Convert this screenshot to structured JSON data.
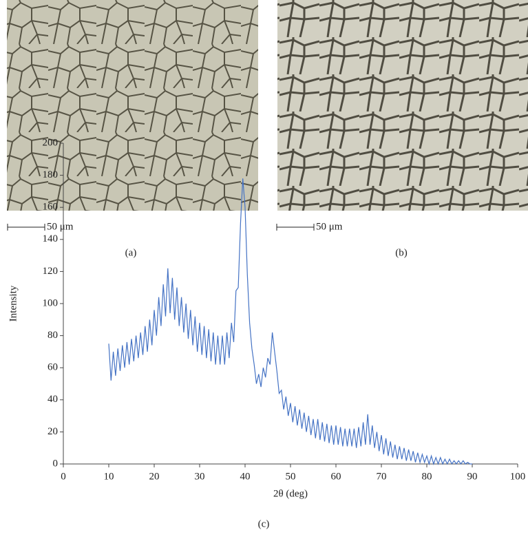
{
  "panels": [
    {
      "label": "(a)",
      "scale_label": "50 μm"
    },
    {
      "label": "(b)",
      "scale_label": "50 μm"
    }
  ],
  "chart_data": {
    "type": "line",
    "panel_label": "(c)",
    "x_label": "2θ (deg)",
    "y_label": "Intensity",
    "color": "#4472c4",
    "xlim": [
      0,
      100
    ],
    "xticks": [
      0,
      10,
      20,
      30,
      40,
      50,
      60,
      70,
      80,
      90,
      100
    ],
    "ylim": [
      0,
      200
    ],
    "yticks": [
      0,
      20,
      40,
      60,
      80,
      100,
      120,
      140,
      160,
      180,
      200
    ],
    "grid": false,
    "x": [
      10,
      10.5,
      11,
      11.5,
      12,
      12.5,
      13,
      13.5,
      14,
      14.5,
      15,
      15.5,
      16,
      16.5,
      17,
      17.5,
      18,
      18.5,
      19,
      19.5,
      20,
      20.5,
      21,
      21.5,
      22,
      22.5,
      23,
      23.5,
      24,
      24.5,
      25,
      25.5,
      26,
      26.5,
      27,
      27.5,
      28,
      28.5,
      29,
      29.5,
      30,
      30.5,
      31,
      31.5,
      32,
      32.5,
      33,
      33.5,
      34,
      34.5,
      35,
      35.5,
      36,
      36.5,
      37,
      37.5,
      38,
      38.5,
      39,
      39.5,
      40,
      40.5,
      41,
      41.5,
      42,
      42.5,
      43,
      43.5,
      44,
      44.5,
      45,
      45.5,
      46,
      46.5,
      47,
      47.5,
      48,
      48.5,
      49,
      49.5,
      50,
      50.5,
      51,
      51.5,
      52,
      52.5,
      53,
      53.5,
      54,
      54.5,
      55,
      55.5,
      56,
      56.5,
      57,
      57.5,
      58,
      58.5,
      59,
      59.5,
      60,
      60.5,
      61,
      61.5,
      62,
      62.5,
      63,
      63.5,
      64,
      64.5,
      65,
      65.5,
      66,
      66.5,
      67,
      67.5,
      68,
      68.5,
      69,
      69.5,
      70,
      70.5,
      71,
      71.5,
      72,
      72.5,
      73,
      73.5,
      74,
      74.5,
      75,
      75.5,
      76,
      76.5,
      77,
      77.5,
      78,
      78.5,
      79,
      79.5,
      80,
      80.5,
      81,
      81.5,
      82,
      82.5,
      83,
      83.5,
      84,
      84.5,
      85,
      85.5,
      86,
      86.5,
      87,
      87.5,
      88,
      88.5,
      89,
      89.5,
      90
    ],
    "values": [
      75,
      52,
      70,
      55,
      72,
      58,
      74,
      60,
      76,
      62,
      78,
      64,
      80,
      66,
      82,
      68,
      86,
      70,
      90,
      74,
      96,
      80,
      104,
      86,
      112,
      92,
      122,
      94,
      116,
      90,
      110,
      86,
      104,
      82,
      100,
      78,
      96,
      74,
      92,
      70,
      88,
      68,
      86,
      66,
      84,
      64,
      82,
      62,
      80,
      62,
      80,
      62,
      82,
      66,
      88,
      76,
      108,
      110,
      150,
      178,
      160,
      118,
      88,
      72,
      62,
      50,
      56,
      48,
      60,
      54,
      66,
      62,
      82,
      70,
      58,
      44,
      46,
      34,
      42,
      30,
      38,
      26,
      36,
      24,
      34,
      22,
      32,
      20,
      30,
      18,
      28,
      16,
      28,
      15,
      26,
      14,
      25,
      13,
      24,
      12,
      24,
      12,
      23,
      11,
      22,
      11,
      22,
      11,
      22,
      10,
      23,
      11,
      26,
      12,
      31,
      12,
      24,
      10,
      20,
      8,
      18,
      6,
      16,
      5,
      14,
      4,
      12,
      3,
      11,
      3,
      10,
      2,
      9,
      2,
      8,
      1,
      7,
      1,
      6,
      1,
      5,
      0,
      5,
      0,
      4,
      0,
      4,
      0,
      3,
      0,
      3,
      0,
      2,
      0,
      2,
      0,
      2,
      0,
      1,
      0,
      0
    ]
  }
}
